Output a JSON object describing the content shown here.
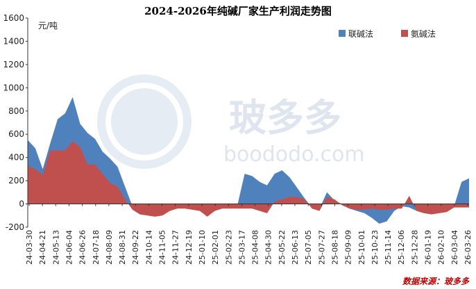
{
  "chart_data": {
    "type": "area",
    "title": "2024-2026年纯碱厂家生产利润走势图",
    "unit_label": "元/吨",
    "ylim": [
      -200,
      1600
    ],
    "yticks": [
      -200,
      0,
      200,
      400,
      600,
      800,
      1000,
      1200,
      1400,
      1600
    ],
    "grid": false,
    "legend_position": "top-right",
    "x_tick_labels": [
      "24-03-30",
      "24-04-21",
      "24-05-13",
      "24-06-04",
      "24-06-26",
      "24-07-18",
      "24-08-09",
      "24-08-31",
      "24-09-22",
      "24-10-14",
      "24-11-05",
      "24-11-27",
      "24-12-19",
      "25-01-10",
      "25-02-01",
      "25-02-23",
      "25-03-17",
      "25-04-08",
      "25-04-30",
      "25-05-22",
      "25-06-13",
      "25-07-05",
      "25-07-27",
      "25-08-18",
      "25-09-09",
      "25-10-01",
      "25-10-23",
      "25-11-14",
      "25-12-06",
      "25-12-28",
      "26-01-19",
      "26-02-10",
      "26-03-04",
      "26-03-26"
    ],
    "series": [
      {
        "name": "联碱法",
        "color": "#4f81bd",
        "points": [
          [
            0,
            550
          ],
          [
            1,
            480
          ],
          [
            2,
            300
          ],
          [
            3,
            520
          ],
          [
            4,
            730
          ],
          [
            5,
            780
          ],
          [
            6,
            920
          ],
          [
            7,
            690
          ],
          [
            8,
            610
          ],
          [
            9,
            560
          ],
          [
            10,
            450
          ],
          [
            11,
            390
          ],
          [
            12,
            320
          ],
          [
            13,
            150
          ],
          [
            14,
            -20
          ],
          [
            15,
            -80
          ],
          [
            16,
            -90
          ],
          [
            17,
            -90
          ],
          [
            18,
            -80
          ],
          [
            19,
            -50
          ],
          [
            20,
            -30
          ],
          [
            21,
            -30
          ],
          [
            22,
            -40
          ],
          [
            23,
            -60
          ],
          [
            24,
            -100
          ],
          [
            25,
            -60
          ],
          [
            26,
            -30
          ],
          [
            27,
            -20
          ],
          [
            28,
            -20
          ],
          [
            29,
            260
          ],
          [
            30,
            240
          ],
          [
            31,
            190
          ],
          [
            32,
            160
          ],
          [
            33,
            260
          ],
          [
            34,
            290
          ],
          [
            35,
            230
          ],
          [
            36,
            140
          ],
          [
            37,
            50
          ],
          [
            38,
            -30
          ],
          [
            39,
            -40
          ],
          [
            40,
            100
          ],
          [
            41,
            30
          ],
          [
            42,
            0
          ],
          [
            43,
            -40
          ],
          [
            44,
            -60
          ],
          [
            45,
            -80
          ],
          [
            46,
            -120
          ],
          [
            47,
            -170
          ],
          [
            48,
            -150
          ],
          [
            49,
            -60
          ],
          [
            50,
            -20
          ],
          [
            51,
            -30
          ],
          [
            52,
            -60
          ],
          [
            53,
            -80
          ],
          [
            54,
            -70
          ],
          [
            55,
            -60
          ],
          [
            56,
            -50
          ],
          [
            57,
            -20
          ],
          [
            58,
            190
          ],
          [
            59,
            220
          ]
        ]
      },
      {
        "name": "氨碱法",
        "color": "#c0504d",
        "points": [
          [
            0,
            330
          ],
          [
            1,
            300
          ],
          [
            2,
            250
          ],
          [
            3,
            460
          ],
          [
            4,
            460
          ],
          [
            5,
            460
          ],
          [
            6,
            540
          ],
          [
            7,
            490
          ],
          [
            8,
            340
          ],
          [
            9,
            340
          ],
          [
            10,
            260
          ],
          [
            11,
            180
          ],
          [
            12,
            150
          ],
          [
            13,
            40
          ],
          [
            14,
            -50
          ],
          [
            15,
            -90
          ],
          [
            16,
            -100
          ],
          [
            17,
            -110
          ],
          [
            18,
            -100
          ],
          [
            19,
            -60
          ],
          [
            20,
            -40
          ],
          [
            21,
            -40
          ],
          [
            22,
            -50
          ],
          [
            23,
            -60
          ],
          [
            24,
            -110
          ],
          [
            25,
            -60
          ],
          [
            26,
            -40
          ],
          [
            27,
            -40
          ],
          [
            28,
            -40
          ],
          [
            29,
            -40
          ],
          [
            30,
            -40
          ],
          [
            31,
            -60
          ],
          [
            32,
            -80
          ],
          [
            33,
            20
          ],
          [
            34,
            40
          ],
          [
            35,
            60
          ],
          [
            36,
            60
          ],
          [
            37,
            40
          ],
          [
            38,
            -40
          ],
          [
            39,
            -60
          ],
          [
            40,
            60
          ],
          [
            41,
            40
          ],
          [
            42,
            -10
          ],
          [
            43,
            -40
          ],
          [
            44,
            -50
          ],
          [
            45,
            -50
          ],
          [
            46,
            -40
          ],
          [
            47,
            -50
          ],
          [
            48,
            -50
          ],
          [
            49,
            -40
          ],
          [
            50,
            -40
          ],
          [
            51,
            70
          ],
          [
            52,
            -60
          ],
          [
            53,
            -80
          ],
          [
            54,
            -90
          ],
          [
            55,
            -80
          ],
          [
            56,
            -70
          ],
          [
            57,
            -30
          ],
          [
            58,
            -30
          ],
          [
            59,
            -30
          ]
        ]
      }
    ],
    "watermark": {
      "brand": "玻多多",
      "domain": "boododo.com"
    },
    "source": "数据来源：玻多多"
  }
}
